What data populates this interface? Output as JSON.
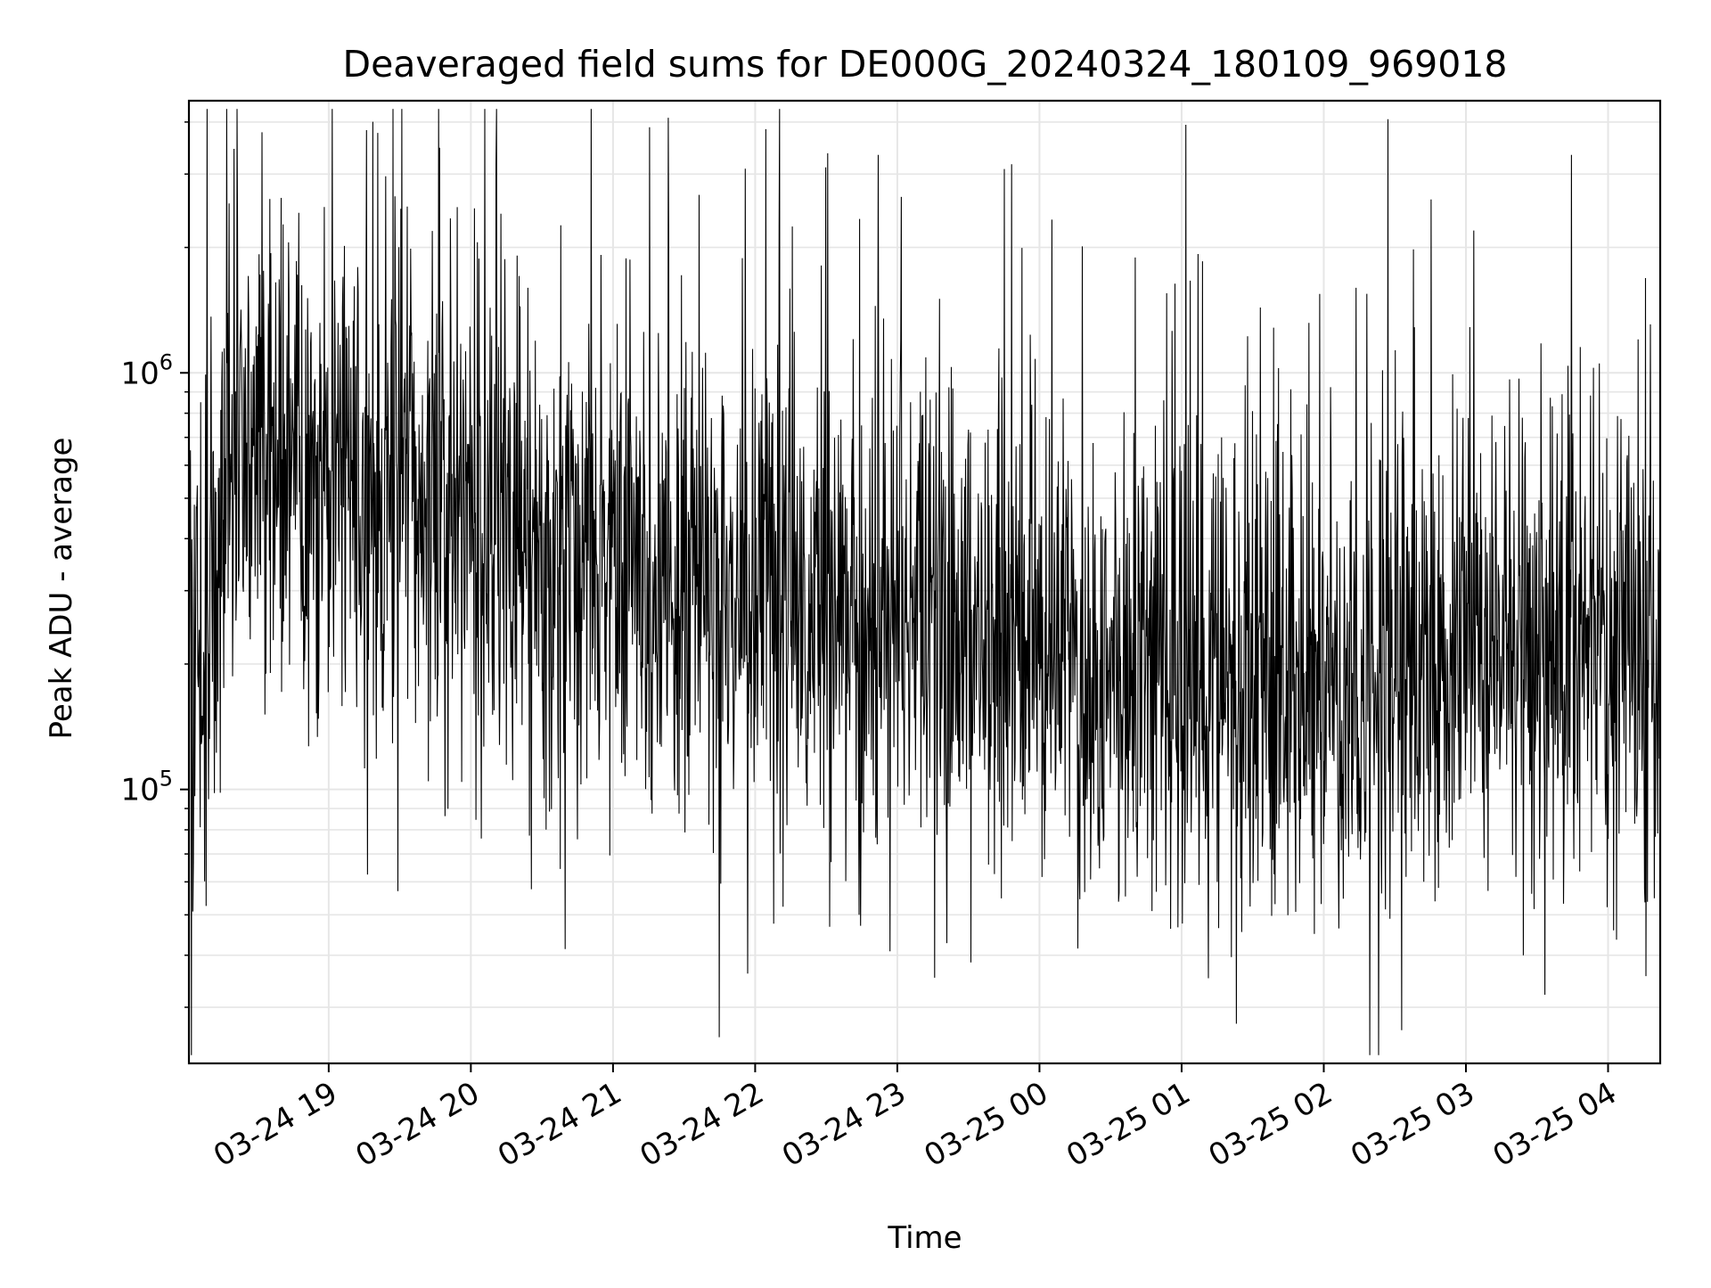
{
  "chart_data": {
    "type": "line",
    "title": "Deaveraged field sums for DE000G_20240324_180109_969018",
    "xlabel": "Time",
    "ylabel": "Peak ADU - average",
    "yscale": "log",
    "ylim": [
      22000,
      4500000
    ],
    "xlim": [
      "2024-03-24 18:01",
      "2024-03-25 04:22"
    ],
    "grid": true,
    "xtick_labels": [
      "03-24 19",
      "03-24 20",
      "03-24 21",
      "03-24 22",
      "03-24 23",
      "03-25 00",
      "03-25 01",
      "03-25 02",
      "03-25 03",
      "03-25 04"
    ],
    "xtick_times": [
      "2024-03-24 19:00",
      "2024-03-24 20:00",
      "2024-03-24 21:00",
      "2024-03-24 22:00",
      "2024-03-24 23:00",
      "2024-03-25 00:00",
      "2024-03-25 01:00",
      "2024-03-25 02:00",
      "2024-03-25 03:00",
      "2024-03-25 04:00"
    ],
    "ytick_labels": [
      {
        "base": "10",
        "exp": "5",
        "value": 100000
      },
      {
        "base": "10",
        "exp": "6",
        "value": 1000000
      }
    ],
    "line_color": "#000000",
    "series": [
      {
        "x": [
          "2024-03-24 18:01",
          "2024-03-24 18:10",
          "2024-03-24 18:20",
          "2024-03-24 18:30",
          "2024-03-24 18:40",
          "2024-03-24 18:50",
          "2024-03-24 19:00",
          "2024-03-24 19:10",
          "2024-03-24 19:20",
          "2024-03-24 19:30",
          "2024-03-24 19:40",
          "2024-03-24 19:50",
          "2024-03-24 20:00",
          "2024-03-24 20:15",
          "2024-03-24 20:30",
          "2024-03-24 20:45",
          "2024-03-24 21:00",
          "2024-03-24 21:15",
          "2024-03-24 21:30",
          "2024-03-24 21:45",
          "2024-03-24 22:00",
          "2024-03-24 22:15",
          "2024-03-24 22:30",
          "2024-03-24 22:45",
          "2024-03-24 23:00",
          "2024-03-24 23:15",
          "2024-03-24 23:30",
          "2024-03-24 23:45",
          "2024-03-25 00:00",
          "2024-03-25 00:15",
          "2024-03-25 00:30",
          "2024-03-25 00:45",
          "2024-03-25 01:00",
          "2024-03-25 01:15",
          "2024-03-25 01:30",
          "2024-03-25 01:45",
          "2024-03-25 02:00",
          "2024-03-25 02:15",
          "2024-03-25 02:30",
          "2024-03-25 02:45",
          "2024-03-25 03:00",
          "2024-03-25 03:15",
          "2024-03-25 03:30",
          "2024-03-25 03:45",
          "2024-03-25 04:00",
          "2024-03-25 04:22"
        ],
        "y": [
          180000,
          230000,
          700000,
          600000,
          550000,
          500000,
          520000,
          560000,
          450000,
          500000,
          520000,
          480000,
          420000,
          380000,
          360000,
          340000,
          350000,
          330000,
          320000,
          300000,
          300000,
          290000,
          270000,
          260000,
          270000,
          250000,
          230000,
          220000,
          210000,
          200000,
          200000,
          205000,
          195000,
          180000,
          175000,
          170000,
          165000,
          168000,
          175000,
          185000,
          195000,
          210000,
          220000,
          215000,
          200000,
          180000
        ]
      }
    ]
  }
}
